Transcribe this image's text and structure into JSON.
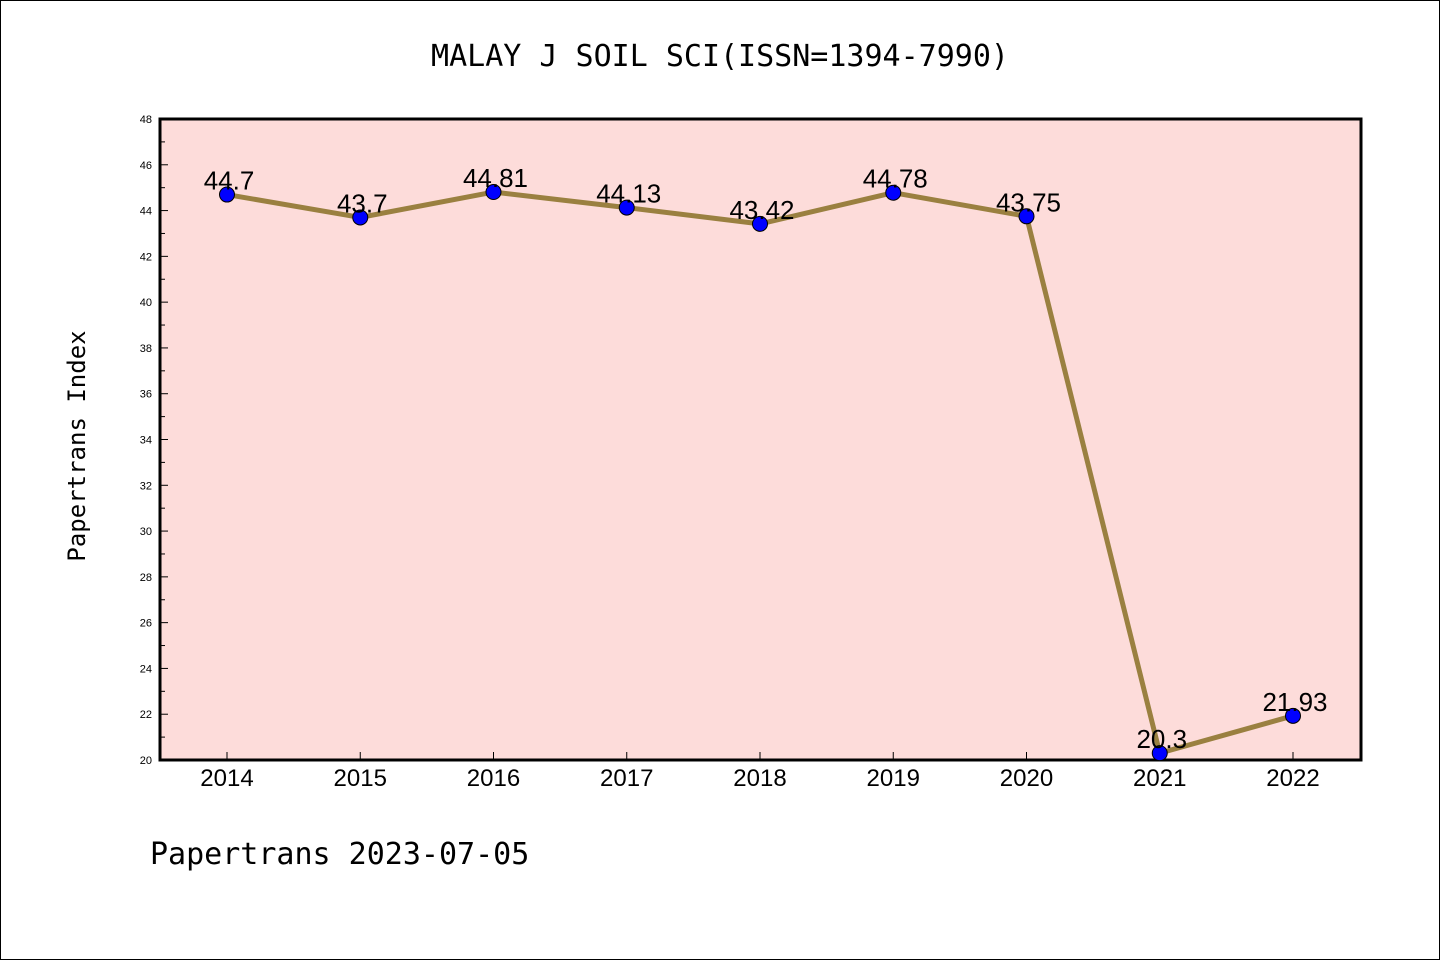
{
  "chart_data": {
    "type": "line",
    "title": "MALAY J SOIL SCI(ISSN=1394-7990)",
    "ylabel": "Papertrans Index",
    "xlabel": "",
    "categories": [
      "2014",
      "2015",
      "2016",
      "2017",
      "2018",
      "2019",
      "2020",
      "2021",
      "2022"
    ],
    "values": [
      44.7,
      43.7,
      44.81,
      44.13,
      43.42,
      44.78,
      43.75,
      20.3,
      21.93
    ],
    "value_labels": [
      "44.7",
      "43.7",
      "44.81",
      "44.13",
      "43.42",
      "44.78",
      "43.75",
      "20.3",
      "21.93"
    ],
    "ylim": [
      20,
      48
    ],
    "yticks": [
      "20",
      "22",
      "24",
      "26",
      "28",
      "30",
      "32",
      "34",
      "36",
      "38",
      "40",
      "42",
      "44",
      "46",
      "48"
    ],
    "grid": false,
    "colors": {
      "plot_background": "#fddcda",
      "line": "#9a8040",
      "marker": "#0000ff"
    }
  },
  "footer": "Papertrans 2023-07-05"
}
